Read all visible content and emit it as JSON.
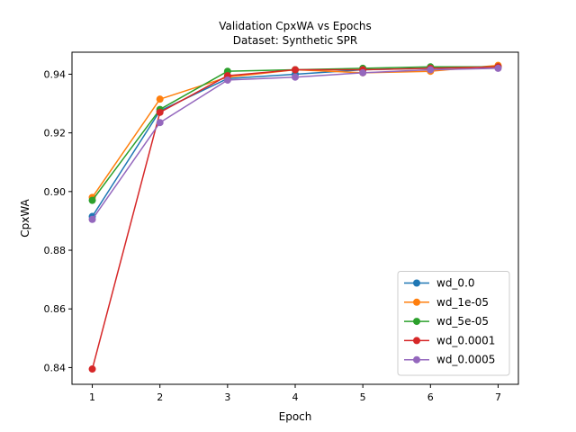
{
  "chart_data": {
    "type": "line",
    "title": "Validation CpxWA vs Epochs",
    "subtitle": "Dataset: Synthetic SPR",
    "xlabel": "Epoch",
    "ylabel": "CpxWA",
    "x": [
      1,
      2,
      3,
      4,
      5,
      6,
      7
    ],
    "xlim": [
      0.7,
      7.3
    ],
    "ylim": [
      0.8343,
      0.9475
    ],
    "xticks": [
      "1",
      "2",
      "3",
      "4",
      "5",
      "6",
      "7"
    ],
    "yticks": [
      "0.84",
      "0.86",
      "0.88",
      "0.90",
      "0.92",
      "0.94"
    ],
    "yticks_values": [
      0.84,
      0.86,
      0.88,
      0.9,
      0.92,
      0.94
    ],
    "grid": false,
    "legend_position": "bottom-right",
    "series": [
      {
        "name": "wd_0.0",
        "color": "#1f77b4",
        "values": [
          0.8915,
          0.9275,
          0.9385,
          0.94,
          0.9415,
          0.942,
          0.9425
        ]
      },
      {
        "name": "wd_1e-05",
        "color": "#ff7f0e",
        "values": [
          0.898,
          0.9315,
          0.939,
          0.9415,
          0.9405,
          0.941,
          0.943
        ]
      },
      {
        "name": "wd_5e-05",
        "color": "#2ca02c",
        "values": [
          0.897,
          0.928,
          0.941,
          0.9415,
          0.942,
          0.9425,
          0.9425
        ]
      },
      {
        "name": "wd_0.0001",
        "color": "#d62728",
        "values": [
          0.8395,
          0.927,
          0.9395,
          0.9415,
          0.9415,
          0.942,
          0.9425
        ]
      },
      {
        "name": "wd_0.0005",
        "color": "#9467bd",
        "values": [
          0.8905,
          0.9235,
          0.938,
          0.939,
          0.9405,
          0.9415,
          0.942
        ]
      }
    ]
  }
}
